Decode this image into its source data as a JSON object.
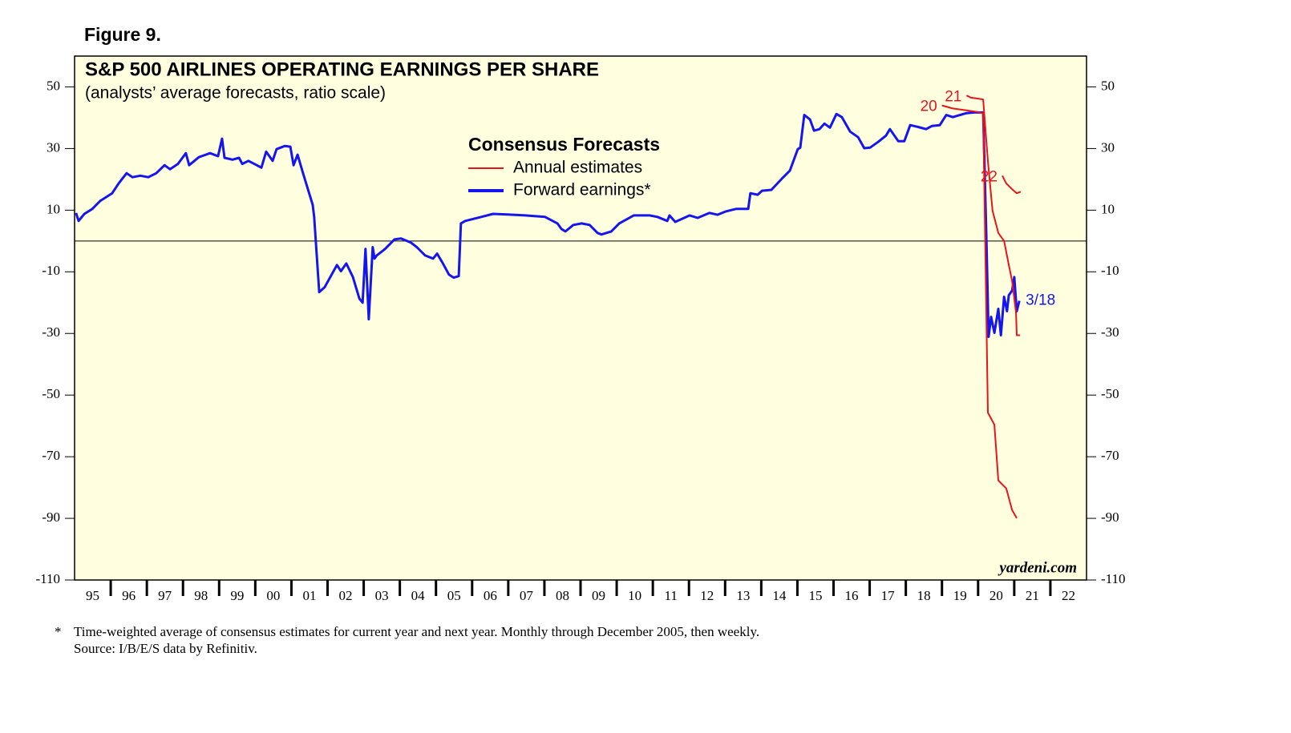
{
  "figure_label": "Figure 9.",
  "footnotes": {
    "marker": "*",
    "lines": [
      "Time-weighted average of consensus estimates for current year and next year. Monthly through December 2005, then weekly.",
      "Source: I/B/E/S data by Refinitiv."
    ]
  },
  "chart_data": {
    "type": "line",
    "title": "S&P 500 AIRLINES OPERATING EARNINGS PER SHARE",
    "subtitle": "(analysts’ average forecasts, ratio scale)",
    "legend_title": "Consensus Forecasts",
    "source_note": "yardeni.com",
    "xlim": [
      1995,
      2023
    ],
    "xticks": [
      {
        "value": 1995,
        "label": "95"
      },
      {
        "value": 1996,
        "label": "96"
      },
      {
        "value": 1997,
        "label": "97"
      },
      {
        "value": 1998,
        "label": "98"
      },
      {
        "value": 1999,
        "label": "99"
      },
      {
        "value": 2000,
        "label": "00"
      },
      {
        "value": 2001,
        "label": "01"
      },
      {
        "value": 2002,
        "label": "02"
      },
      {
        "value": 2003,
        "label": "03"
      },
      {
        "value": 2004,
        "label": "04"
      },
      {
        "value": 2005,
        "label": "05"
      },
      {
        "value": 2006,
        "label": "06"
      },
      {
        "value": 2007,
        "label": "07"
      },
      {
        "value": 2008,
        "label": "08"
      },
      {
        "value": 2009,
        "label": "09"
      },
      {
        "value": 2010,
        "label": "10"
      },
      {
        "value": 2011,
        "label": "11"
      },
      {
        "value": 2012,
        "label": "12"
      },
      {
        "value": 2013,
        "label": "13"
      },
      {
        "value": 2014,
        "label": "14"
      },
      {
        "value": 2015,
        "label": "15"
      },
      {
        "value": 2016,
        "label": "16"
      },
      {
        "value": 2017,
        "label": "17"
      },
      {
        "value": 2018,
        "label": "18"
      },
      {
        "value": 2019,
        "label": "19"
      },
      {
        "value": 2020,
        "label": "20"
      },
      {
        "value": 2021,
        "label": "21"
      },
      {
        "value": 2022,
        "label": "22"
      }
    ],
    "ylim": [
      -110,
      60
    ],
    "yticks": [
      -110,
      -90,
      -70,
      -50,
      -30,
      -10,
      10,
      30,
      50
    ],
    "zero_line": true,
    "series": [
      {
        "name": "Annual estimates",
        "label": "20",
        "color": "#e8141b",
        "x": [
          2019.0,
          2019.3,
          2019.6,
          2019.9,
          2020.14,
          2020.27,
          2020.45,
          2020.56,
          2020.78,
          2020.94,
          2021.07
        ],
        "values": [
          44,
          43,
          42.5,
          42,
          41.5,
          -55.7,
          -59.6,
          -77.7,
          -80.3,
          -87.3,
          -89.9
        ]
      },
      {
        "name": "Forward earnings*",
        "color": "#1515f0",
        "end_label": "3/18",
        "x": [
          1995.04,
          1995.11,
          1995.27,
          1995.49,
          1995.71,
          1996.04,
          1996.22,
          1996.44,
          1996.6,
          1996.82,
          1997.04,
          1997.26,
          1997.49,
          1997.64,
          1997.86,
          1998.08,
          1998.17,
          1998.44,
          1998.75,
          1998.97,
          1999.08,
          1999.15,
          1999.37,
          1999.55,
          1999.64,
          1999.81,
          2000.04,
          2000.17,
          2000.3,
          2000.48,
          2000.59,
          2000.81,
          2000.97,
          2001.06,
          2001.17,
          2001.32,
          2001.59,
          2001.63,
          2001.77,
          2001.92,
          2002.26,
          2002.37,
          2002.52,
          2002.7,
          2002.88,
          2002.97,
          2003.05,
          2003.14,
          2003.25,
          2003.3,
          2003.36,
          2003.59,
          2003.85,
          2004.03,
          2004.3,
          2004.47,
          2004.7,
          2004.92,
          2005.03,
          2005.18,
          2005.36,
          2005.49,
          2005.63,
          2005.69,
          2005.81,
          2006.25,
          2006.58,
          2007.14,
          2007.47,
          2007.8,
          2008.02,
          2008.36,
          2008.47,
          2008.58,
          2008.8,
          2009.03,
          2009.25,
          2009.47,
          2009.58,
          2009.85,
          2010.07,
          2010.47,
          2010.91,
          2011.13,
          2011.4,
          2011.46,
          2011.62,
          2012.02,
          2012.24,
          2012.57,
          2012.79,
          2013.02,
          2013.3,
          2013.64,
          2013.7,
          2013.9,
          2014.02,
          2014.28,
          2014.57,
          2014.79,
          2015.01,
          2015.08,
          2015.19,
          2015.35,
          2015.46,
          2015.61,
          2015.75,
          2015.9,
          2016.08,
          2016.23,
          2016.46,
          2016.68,
          2016.85,
          2017.01,
          2017.23,
          2017.45,
          2017.56,
          2017.79,
          2017.96,
          2018.12,
          2018.34,
          2018.56,
          2018.72,
          2018.94,
          2019.12,
          2019.3,
          2019.45,
          2019.68,
          2019.89,
          2020.14,
          2020.23,
          2020.29,
          2020.36,
          2020.45,
          2020.56,
          2020.63,
          2020.72,
          2020.8,
          2020.85,
          2020.94,
          2021.0,
          2021.07,
          2021.14
        ],
        "values": [
          9.1,
          6.5,
          8.8,
          10.4,
          13,
          15.5,
          18.7,
          22,
          20.7,
          21.2,
          20.7,
          22,
          24.6,
          23.3,
          25,
          28.5,
          24.6,
          27.2,
          28.5,
          27.5,
          33.2,
          27,
          26.4,
          27,
          25,
          26,
          24.6,
          23.8,
          29,
          26,
          29.8,
          30.8,
          30.6,
          24.6,
          28,
          22,
          11.7,
          7.8,
          -16.6,
          -15,
          -7.8,
          -9.8,
          -7.3,
          -11.7,
          -18.7,
          -20,
          -2.6,
          -25.4,
          -2,
          -5.7,
          -4.7,
          -2.6,
          0.5,
          0.8,
          -0.5,
          -2,
          -4.7,
          -5.7,
          -4.1,
          -7,
          -10.9,
          -11.9,
          -11.4,
          5.7,
          6.5,
          7.8,
          8.8,
          8.5,
          8.3,
          8,
          7.8,
          5.7,
          3.9,
          3.1,
          5.2,
          5.7,
          5.2,
          2.6,
          2.1,
          3.1,
          5.7,
          8.3,
          8.3,
          7.8,
          6.5,
          8.3,
          6.2,
          8.3,
          7.5,
          9.1,
          8.5,
          9.6,
          10.4,
          10.4,
          15.5,
          15,
          16.3,
          16.6,
          20.2,
          22.8,
          29.8,
          30.3,
          40.9,
          39.4,
          35.8,
          36.3,
          38.1,
          36.8,
          41.2,
          40.2,
          35.5,
          33.7,
          30.1,
          30.3,
          32.1,
          34.2,
          36.3,
          32.4,
          32.4,
          37.6,
          37,
          36.3,
          37.3,
          37.6,
          40.9,
          40.2,
          40.7,
          41.5,
          41.7,
          41.7,
          0,
          -31.1,
          -24.6,
          -29.8,
          -22,
          -30.6,
          -18.1,
          -22.8,
          -17.6,
          -16.1,
          -11.7,
          -22.8,
          -19.4
        ]
      },
      {
        "label": "21",
        "color": "#e8141b",
        "x": [
          2019.68,
          2019.8,
          2020.0,
          2020.14,
          2020.27,
          2020.4,
          2020.56,
          2020.72,
          2020.85,
          2020.94,
          2021.05,
          2021.07,
          2021.16
        ],
        "values": [
          47.2,
          46.5,
          46.2,
          45.9,
          25.9,
          9.8,
          2.6,
          0,
          -7.8,
          -13,
          -23.3,
          -30.6,
          -30.6
        ]
      },
      {
        "label": "22",
        "color": "#e8141b",
        "x": [
          2020.67,
          2020.78,
          2020.94,
          2021.07,
          2021.18
        ],
        "values": [
          21.2,
          18.7,
          16.8,
          15.5,
          16
        ]
      }
    ]
  }
}
